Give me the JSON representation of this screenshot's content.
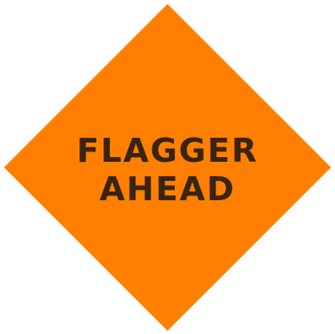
{
  "sign": {
    "line1": "FLAGGER",
    "line2": "AHEAD",
    "background_color": "#ff7f00",
    "text_color": "#3a2410"
  }
}
